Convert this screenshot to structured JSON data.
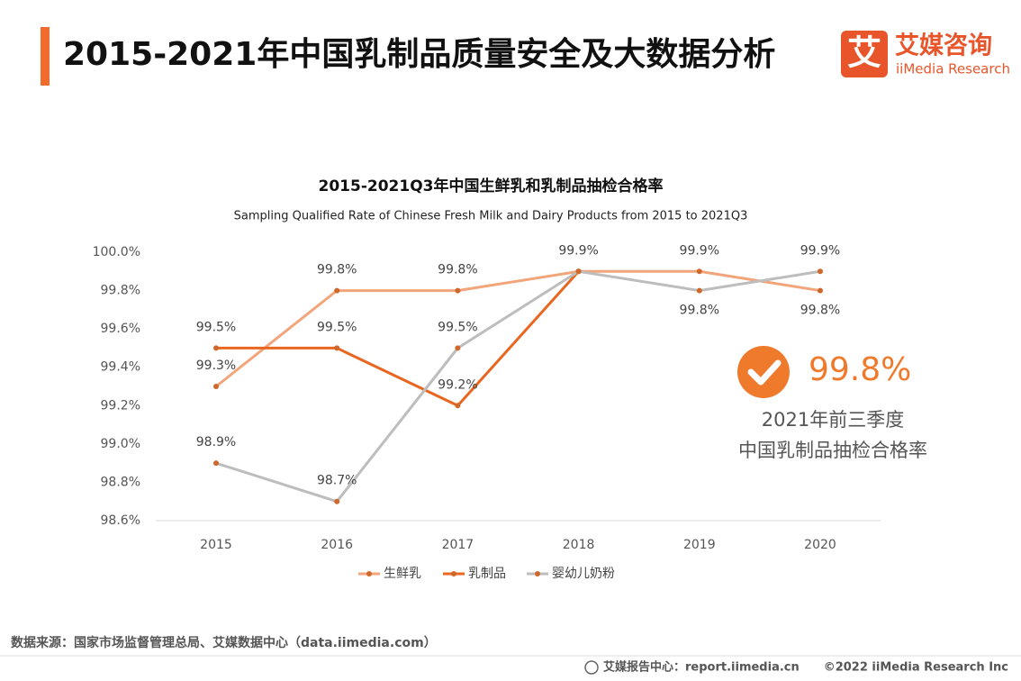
{
  "header": {
    "title": "2015-2021年中国乳制品质量安全及大数据分析",
    "logo_icon": "艾",
    "logo_name": "艾媒咨询",
    "logo_sub": "iiMedia Research"
  },
  "chart_data": {
    "type": "line",
    "title": "2015-2021Q3年中国生鲜乳和乳制品抽检合格率",
    "subtitle": "Sampling Qualified Rate of Chinese Fresh Milk and Dairy Products from 2015 to 2021Q3",
    "categories": [
      "2015",
      "2016",
      "2017",
      "2018",
      "2019",
      "2020"
    ],
    "series": [
      {
        "name": "生鲜乳",
        "color": "#f2a57a",
        "values": [
          99.3,
          99.8,
          99.8,
          99.9,
          99.9,
          99.8
        ],
        "value_labels": [
          "99.3%",
          "99.8%",
          "99.8%",
          "99.9%",
          "99.9%",
          "99.8%"
        ]
      },
      {
        "name": "乳制品",
        "color": "#e8661f",
        "values": [
          99.5,
          99.5,
          99.2,
          99.9,
          null,
          null
        ],
        "value_labels": [
          "99.5%",
          "99.5%",
          "99.2%",
          null,
          null,
          null
        ]
      },
      {
        "name": "婴幼儿奶粉",
        "color": "#bdbdbd",
        "values": [
          98.9,
          98.7,
          99.5,
          99.9,
          99.8,
          99.9
        ],
        "value_labels": [
          "98.9%",
          "98.7%",
          "99.5%",
          null,
          "99.8%",
          "99.9%"
        ]
      }
    ],
    "ylim": [
      98.6,
      100.0
    ],
    "yticks": [
      {
        "value": 98.6,
        "label": "98.6%"
      },
      {
        "value": 98.8,
        "label": "98.8%"
      },
      {
        "value": 99.0,
        "label": "99.0%"
      },
      {
        "value": 99.2,
        "label": "99.2%"
      },
      {
        "value": 99.4,
        "label": "99.4%"
      },
      {
        "value": 99.6,
        "label": "99.6%"
      },
      {
        "value": 99.8,
        "label": "99.8%"
      },
      {
        "value": 100.0,
        "label": "100.0%"
      }
    ],
    "legend": "bottom",
    "grid": false
  },
  "callout": {
    "value": "99.8%",
    "line1": "2021年前三季度",
    "line2": "中国乳制品抽检合格率"
  },
  "footer": {
    "source": "数据来源：国家市场监督管理总局、艾媒数据中心（data.iimedia.com）",
    "report": "艾媒报告中心：report.iimedia.cn",
    "copyright": "©2022  iiMedia Research  Inc"
  }
}
